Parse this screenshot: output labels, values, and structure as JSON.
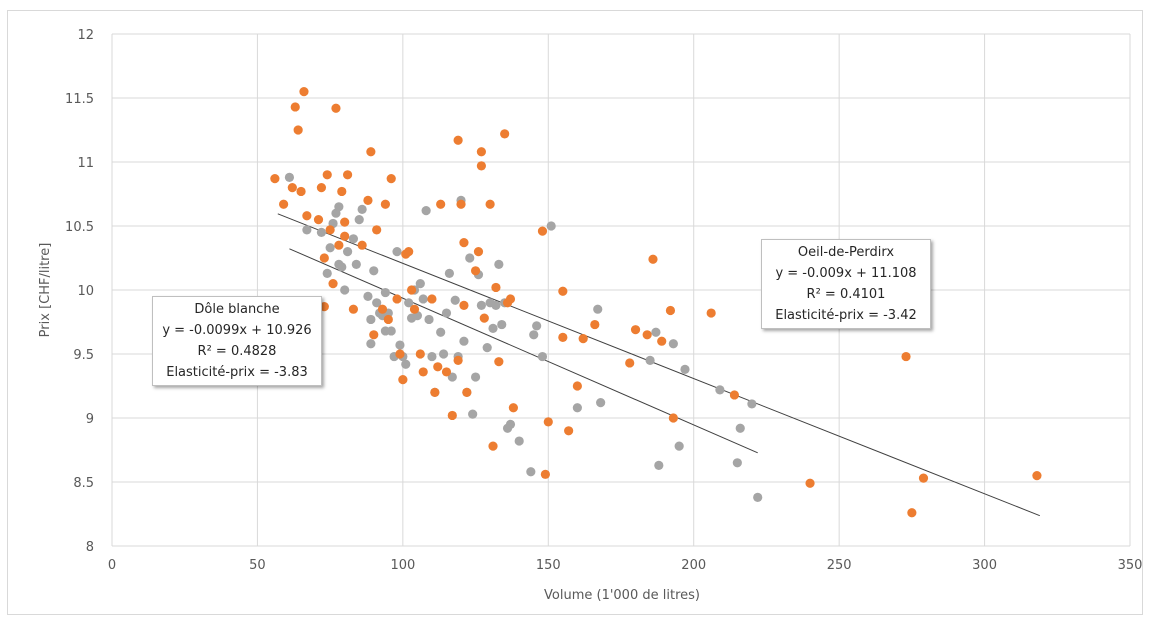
{
  "chart_data": {
    "type": "scatter",
    "xlabel": "Volume (1'000 de litres)",
    "ylabel": "Prix [CHF/litre]",
    "xlim": [
      0,
      350
    ],
    "ylim": [
      8,
      12
    ],
    "x_ticks": [
      0,
      50,
      100,
      150,
      200,
      250,
      300,
      350
    ],
    "y_ticks": [
      8,
      8.5,
      9,
      9.5,
      10,
      10.5,
      11,
      11.5,
      12
    ],
    "grid": true,
    "colors": {
      "Dôle blanche": "#a5a5a5",
      "Oeil-de-Perdirx": "#ed7d31",
      "trendline": "#404040"
    },
    "series": [
      {
        "key": "dole",
        "name": "Dôle blanche",
        "color": "#a5a5a5",
        "points": [
          [
            61,
            10.88
          ],
          [
            67,
            10.47
          ],
          [
            72,
            10.45
          ],
          [
            74,
            10.13
          ],
          [
            75,
            10.33
          ],
          [
            76,
            10.52
          ],
          [
            77,
            10.6
          ],
          [
            78,
            10.65
          ],
          [
            78,
            10.2
          ],
          [
            79,
            10.18
          ],
          [
            80,
            10.0
          ],
          [
            81,
            10.3
          ],
          [
            83,
            10.4
          ],
          [
            84,
            10.2
          ],
          [
            85,
            10.55
          ],
          [
            86,
            10.63
          ],
          [
            88,
            9.95
          ],
          [
            89,
            9.77
          ],
          [
            89,
            9.58
          ],
          [
            90,
            10.15
          ],
          [
            91,
            9.9
          ],
          [
            92,
            9.82
          ],
          [
            93,
            9.8
          ],
          [
            94,
            9.68
          ],
          [
            94,
            9.98
          ],
          [
            95,
            9.82
          ],
          [
            96,
            9.68
          ],
          [
            97,
            9.48
          ],
          [
            98,
            10.3
          ],
          [
            99,
            9.57
          ],
          [
            100,
            9.48
          ],
          [
            101,
            9.42
          ],
          [
            102,
            9.9
          ],
          [
            103,
            9.78
          ],
          [
            104,
            10.0
          ],
          [
            105,
            9.8
          ],
          [
            106,
            10.05
          ],
          [
            107,
            9.93
          ],
          [
            108,
            10.62
          ],
          [
            109,
            9.77
          ],
          [
            110,
            9.48
          ],
          [
            111,
            9.2
          ],
          [
            113,
            9.67
          ],
          [
            114,
            9.5
          ],
          [
            115,
            9.82
          ],
          [
            116,
            10.13
          ],
          [
            117,
            9.32
          ],
          [
            118,
            9.92
          ],
          [
            119,
            9.48
          ],
          [
            120,
            10.7
          ],
          [
            121,
            9.6
          ],
          [
            122,
            9.2
          ],
          [
            123,
            10.25
          ],
          [
            124,
            9.03
          ],
          [
            125,
            9.32
          ],
          [
            126,
            10.12
          ],
          [
            127,
            9.88
          ],
          [
            129,
            9.55
          ],
          [
            130,
            9.9
          ],
          [
            131,
            9.7
          ],
          [
            132,
            9.88
          ],
          [
            133,
            10.2
          ],
          [
            134,
            9.73
          ],
          [
            135,
            9.9
          ],
          [
            136,
            8.92
          ],
          [
            137,
            8.95
          ],
          [
            140,
            8.82
          ],
          [
            144,
            8.58
          ],
          [
            145,
            9.65
          ],
          [
            146,
            9.72
          ],
          [
            148,
            9.48
          ],
          [
            151,
            10.5
          ],
          [
            160,
            9.08
          ],
          [
            167,
            9.85
          ],
          [
            168,
            9.12
          ],
          [
            185,
            9.45
          ],
          [
            187,
            9.67
          ],
          [
            188,
            8.63
          ],
          [
            193,
            9.58
          ],
          [
            195,
            8.78
          ],
          [
            197,
            9.38
          ],
          [
            209,
            9.22
          ],
          [
            215,
            8.65
          ],
          [
            216,
            8.92
          ],
          [
            220,
            9.11
          ],
          [
            222,
            8.38
          ]
        ]
      },
      {
        "key": "oeil",
        "name": "Oeil-de-Perdirx",
        "color": "#ed7d31",
        "points": [
          [
            56,
            10.87
          ],
          [
            59,
            10.67
          ],
          [
            62,
            10.8
          ],
          [
            63,
            11.43
          ],
          [
            64,
            11.25
          ],
          [
            65,
            10.77
          ],
          [
            66,
            11.55
          ],
          [
            67,
            10.58
          ],
          [
            71,
            10.55
          ],
          [
            72,
            10.8
          ],
          [
            73,
            10.25
          ],
          [
            73,
            9.87
          ],
          [
            74,
            10.9
          ],
          [
            75,
            10.47
          ],
          [
            76,
            10.05
          ],
          [
            77,
            11.42
          ],
          [
            78,
            10.35
          ],
          [
            79,
            10.77
          ],
          [
            80,
            10.53
          ],
          [
            80,
            10.42
          ],
          [
            81,
            10.9
          ],
          [
            83,
            9.85
          ],
          [
            86,
            10.35
          ],
          [
            88,
            10.7
          ],
          [
            89,
            11.08
          ],
          [
            90,
            9.65
          ],
          [
            91,
            10.47
          ],
          [
            93,
            9.85
          ],
          [
            94,
            10.67
          ],
          [
            95,
            9.77
          ],
          [
            96,
            10.87
          ],
          [
            98,
            9.93
          ],
          [
            99,
            9.5
          ],
          [
            100,
            9.3
          ],
          [
            101,
            10.28
          ],
          [
            102,
            10.3
          ],
          [
            103,
            10.0
          ],
          [
            104,
            9.85
          ],
          [
            106,
            9.5
          ],
          [
            107,
            9.36
          ],
          [
            110,
            9.93
          ],
          [
            111,
            9.2
          ],
          [
            112,
            9.4
          ],
          [
            113,
            10.67
          ],
          [
            115,
            9.36
          ],
          [
            117,
            9.02
          ],
          [
            119,
            9.45
          ],
          [
            119,
            11.17
          ],
          [
            120,
            10.67
          ],
          [
            121,
            9.88
          ],
          [
            121,
            10.37
          ],
          [
            122,
            9.2
          ],
          [
            125,
            10.15
          ],
          [
            126,
            10.3
          ],
          [
            127,
            11.08
          ],
          [
            127,
            10.97
          ],
          [
            128,
            9.78
          ],
          [
            130,
            10.67
          ],
          [
            131,
            8.78
          ],
          [
            132,
            10.02
          ],
          [
            133,
            9.44
          ],
          [
            135,
            11.22
          ],
          [
            136,
            9.9
          ],
          [
            137,
            9.93
          ],
          [
            138,
            9.08
          ],
          [
            148,
            10.46
          ],
          [
            149,
            8.56
          ],
          [
            150,
            8.97
          ],
          [
            155,
            9.99
          ],
          [
            155,
            9.63
          ],
          [
            157,
            8.9
          ],
          [
            160,
            9.25
          ],
          [
            162,
            9.62
          ],
          [
            166,
            9.73
          ],
          [
            178,
            9.43
          ],
          [
            180,
            9.69
          ],
          [
            184,
            9.65
          ],
          [
            186,
            10.24
          ],
          [
            189,
            9.6
          ],
          [
            192,
            9.84
          ],
          [
            193,
            9.0
          ],
          [
            206,
            9.82
          ],
          [
            214,
            9.18
          ],
          [
            240,
            8.49
          ],
          [
            273,
            9.48
          ],
          [
            275,
            8.26
          ],
          [
            279,
            8.53
          ],
          [
            318,
            8.55
          ]
        ]
      }
    ],
    "trendlines": [
      {
        "series": "Oeil-de-Perdirx",
        "slope": -0.009,
        "intercept": 11.108,
        "x_range": [
          57,
          319
        ]
      },
      {
        "series": "Dôle blanche",
        "slope": -0.0099,
        "intercept": 10.926,
        "x_range": [
          61,
          222
        ]
      }
    ],
    "annotations": {
      "dole": {
        "name": "Dôle blanche",
        "equation": "y = -0.0099x + 10.926",
        "r2": "R² = 0.4828",
        "elasticity": "Elasticité-prix = -3.83"
      },
      "oeil": {
        "name": "Oeil-de-Perdirx",
        "equation": "y = -0.009x + 11.108",
        "r2": "R² = 0.4101",
        "elasticity": "Elasticité-prix = -3.42"
      }
    }
  }
}
